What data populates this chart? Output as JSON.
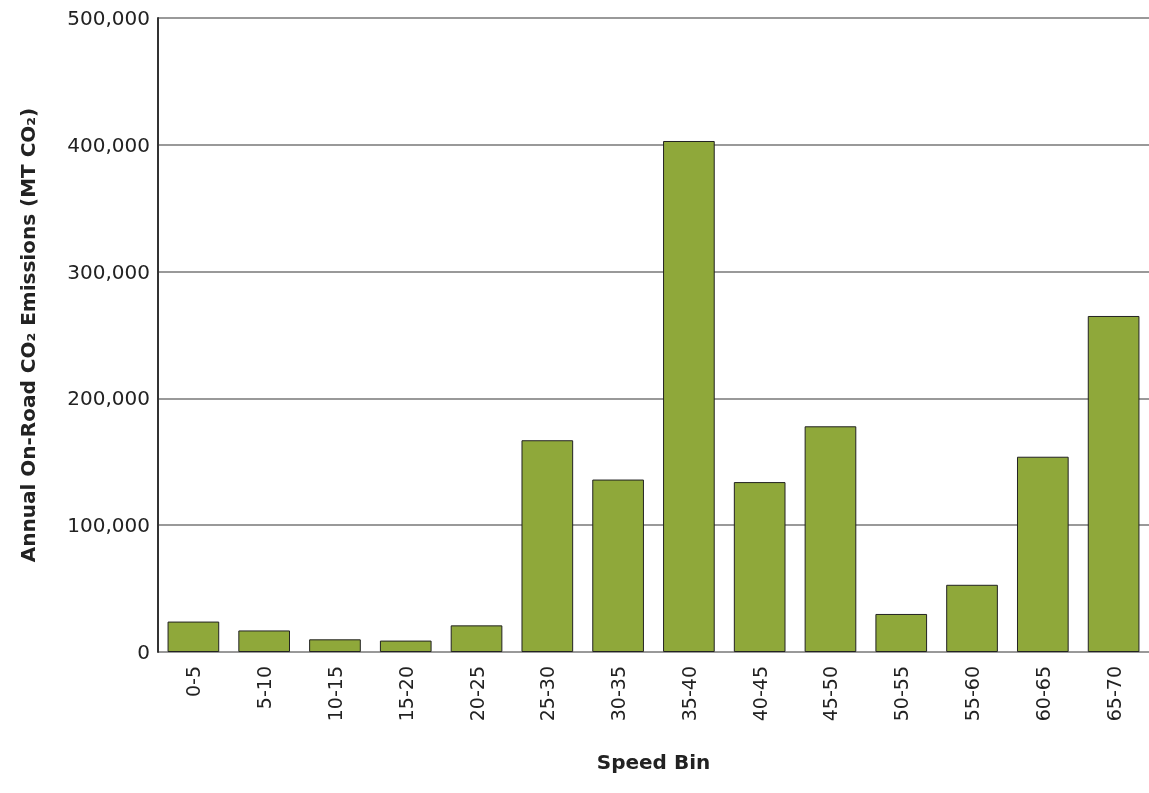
{
  "chart_data": {
    "type": "bar",
    "xlabel": "Speed Bin",
    "ylabel": "Annual On-Road CO₂ Emissions (MT CO₂)",
    "categories": [
      "0-5",
      "5-10",
      "10-15",
      "15-20",
      "20-25",
      "25-30",
      "30-35",
      "35-40",
      "40-45",
      "45-50",
      "50-55",
      "55-60",
      "60-65",
      "65-70"
    ],
    "values": [
      24000,
      17000,
      10000,
      9000,
      21000,
      167000,
      136000,
      403000,
      134000,
      178000,
      30000,
      53000,
      154000,
      265000
    ],
    "color": "#8fa83a",
    "ylim": [
      0,
      500000
    ],
    "yticks": [
      0,
      {
        "value": 100000,
        "label": "100,000"
      },
      {
        "value": 200000,
        "label": "200,000"
      },
      {
        "value": 300000,
        "label": "300,000"
      },
      {
        "value": 400000,
        "label": "400,000"
      },
      {
        "value": 500000,
        "label": "500,000"
      }
    ],
    "grid": "y"
  }
}
